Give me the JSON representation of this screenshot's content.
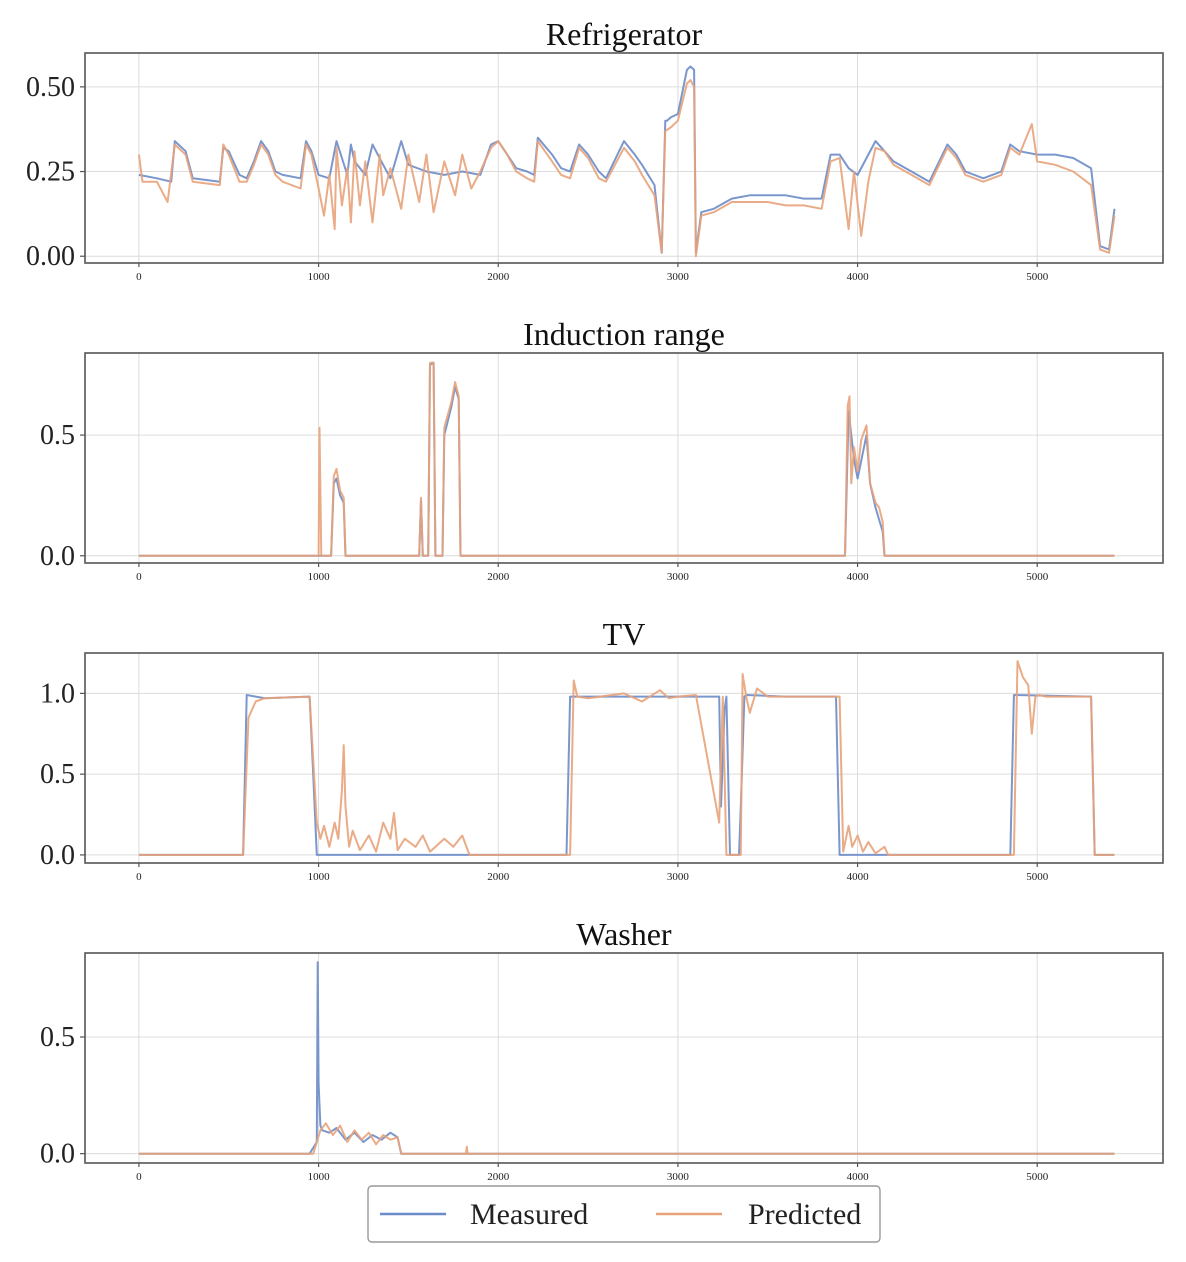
{
  "chart_data": [
    {
      "type": "line",
      "title": "Refrigerator",
      "xlim": [
        -300,
        5700
      ],
      "ylim": [
        -0.02,
        0.6
      ],
      "xticks": [
        0,
        1000,
        2000,
        3000,
        4000,
        5000
      ],
      "yticks": [
        0.0,
        0.25,
        0.5
      ],
      "ytick_labels": [
        "0.00",
        "0.25",
        "0.50"
      ],
      "grid": true,
      "series": [
        {
          "name": "Measured",
          "color": "#6b8cc8",
          "x": [
            0,
            100,
            180,
            200,
            260,
            300,
            450,
            470,
            500,
            560,
            600,
            640,
            680,
            720,
            760,
            800,
            900,
            930,
            960,
            1000,
            1060,
            1100,
            1130,
            1160,
            1180,
            1200,
            1260,
            1300,
            1360,
            1400,
            1460,
            1500,
            1600,
            1700,
            1800,
            1900,
            1960,
            2000,
            2050,
            2100,
            2160,
            2200,
            2220,
            2300,
            2350,
            2400,
            2450,
            2500,
            2560,
            2600,
            2700,
            2760,
            2800,
            2870,
            2910,
            2930,
            2940,
            2960,
            3000,
            3050,
            3070,
            3090,
            3100,
            3130,
            3200,
            3300,
            3400,
            3500,
            3600,
            3700,
            3800,
            3850,
            3900,
            3950,
            4000,
            4100,
            4150,
            4200,
            4300,
            4400,
            4500,
            4550,
            4600,
            4700,
            4750,
            4800,
            4850,
            4900,
            5000,
            5100,
            5200,
            5300,
            5350,
            5400,
            5430
          ],
          "values": [
            0.24,
            0.23,
            0.22,
            0.34,
            0.31,
            0.23,
            0.22,
            0.32,
            0.31,
            0.24,
            0.23,
            0.28,
            0.34,
            0.31,
            0.25,
            0.24,
            0.23,
            0.34,
            0.31,
            0.24,
            0.23,
            0.34,
            0.29,
            0.24,
            0.33,
            0.28,
            0.24,
            0.33,
            0.27,
            0.23,
            0.34,
            0.27,
            0.25,
            0.24,
            0.25,
            0.24,
            0.33,
            0.34,
            0.3,
            0.26,
            0.25,
            0.24,
            0.35,
            0.3,
            0.26,
            0.25,
            0.33,
            0.3,
            0.25,
            0.23,
            0.34,
            0.3,
            0.27,
            0.21,
            0.01,
            0.4,
            0.4,
            0.41,
            0.42,
            0.55,
            0.56,
            0.55,
            0.01,
            0.13,
            0.14,
            0.17,
            0.18,
            0.18,
            0.18,
            0.17,
            0.17,
            0.3,
            0.3,
            0.26,
            0.24,
            0.34,
            0.31,
            0.28,
            0.25,
            0.22,
            0.33,
            0.3,
            0.25,
            0.23,
            0.24,
            0.25,
            0.33,
            0.31,
            0.3,
            0.3,
            0.29,
            0.26,
            0.03,
            0.02,
            0.14
          ]
        },
        {
          "name": "Predicted",
          "color": "#e8a27a",
          "x": [
            0,
            20,
            100,
            160,
            200,
            260,
            300,
            450,
            470,
            500,
            560,
            600,
            640,
            680,
            720,
            760,
            800,
            900,
            930,
            960,
            1000,
            1030,
            1060,
            1090,
            1100,
            1130,
            1160,
            1180,
            1200,
            1230,
            1260,
            1300,
            1340,
            1360,
            1400,
            1460,
            1500,
            1560,
            1600,
            1640,
            1700,
            1760,
            1800,
            1850,
            1900,
            1960,
            2000,
            2050,
            2100,
            2160,
            2200,
            2220,
            2300,
            2350,
            2400,
            2450,
            2500,
            2560,
            2600,
            2700,
            2760,
            2800,
            2870,
            2910,
            2930,
            2960,
            3000,
            3050,
            3070,
            3090,
            3100,
            3130,
            3200,
            3300,
            3400,
            3500,
            3600,
            3700,
            3800,
            3850,
            3900,
            3950,
            3980,
            4020,
            4060,
            4100,
            4150,
            4200,
            4300,
            4400,
            4500,
            4550,
            4600,
            4700,
            4750,
            4800,
            4850,
            4900,
            4970,
            5000,
            5100,
            5200,
            5300,
            5350,
            5400,
            5430
          ],
          "values": [
            0.3,
            0.22,
            0.22,
            0.16,
            0.33,
            0.3,
            0.22,
            0.21,
            0.33,
            0.3,
            0.22,
            0.22,
            0.27,
            0.33,
            0.3,
            0.24,
            0.22,
            0.2,
            0.33,
            0.3,
            0.2,
            0.12,
            0.24,
            0.08,
            0.32,
            0.15,
            0.26,
            0.1,
            0.31,
            0.15,
            0.28,
            0.1,
            0.3,
            0.18,
            0.26,
            0.14,
            0.3,
            0.16,
            0.3,
            0.13,
            0.28,
            0.18,
            0.3,
            0.2,
            0.25,
            0.32,
            0.34,
            0.3,
            0.25,
            0.23,
            0.22,
            0.34,
            0.28,
            0.24,
            0.23,
            0.32,
            0.29,
            0.23,
            0.22,
            0.32,
            0.28,
            0.24,
            0.18,
            0.01,
            0.37,
            0.38,
            0.4,
            0.51,
            0.52,
            0.5,
            0.0,
            0.12,
            0.13,
            0.16,
            0.16,
            0.16,
            0.15,
            0.15,
            0.14,
            0.28,
            0.29,
            0.08,
            0.25,
            0.06,
            0.22,
            0.32,
            0.31,
            0.27,
            0.24,
            0.21,
            0.32,
            0.29,
            0.24,
            0.22,
            0.23,
            0.24,
            0.32,
            0.3,
            0.39,
            0.28,
            0.27,
            0.25,
            0.21,
            0.02,
            0.01,
            0.12
          ]
        }
      ]
    },
    {
      "type": "line",
      "title": "Induction range",
      "xlim": [
        -300,
        5700
      ],
      "ylim": [
        -0.03,
        0.84
      ],
      "xticks": [
        0,
        1000,
        2000,
        3000,
        4000,
        5000
      ],
      "yticks": [
        0.0,
        0.5
      ],
      "ytick_labels": [
        "0.0",
        "0.5"
      ],
      "grid": true,
      "series": [
        {
          "name": "Measured",
          "color": "#6b8cc8",
          "x": [
            0,
            1070,
            1085,
            1100,
            1120,
            1140,
            1150,
            1560,
            1570,
            1580,
            1590,
            1610,
            1620,
            1640,
            1650,
            1660,
            1690,
            1700,
            1740,
            1760,
            1780,
            1790,
            3930,
            3950,
            3980,
            4000,
            4050,
            4070,
            4100,
            4120,
            4140,
            4150,
            5430
          ],
          "values": [
            0,
            0,
            0.3,
            0.32,
            0.25,
            0.22,
            0,
            0,
            0.23,
            0,
            0,
            0,
            0.79,
            0.8,
            0,
            0,
            0,
            0.5,
            0.62,
            0.7,
            0.65,
            0,
            0,
            0.6,
            0.4,
            0.32,
            0.5,
            0.3,
            0.2,
            0.15,
            0.1,
            0,
            0
          ]
        },
        {
          "name": "Predicted",
          "color": "#e8a27a",
          "x": [
            0,
            1000,
            1005,
            1015,
            1070,
            1085,
            1100,
            1120,
            1140,
            1150,
            1560,
            1570,
            1580,
            1590,
            1610,
            1620,
            1640,
            1650,
            1660,
            1690,
            1700,
            1740,
            1760,
            1780,
            1790,
            3930,
            3945,
            3955,
            3965,
            3980,
            4000,
            4020,
            4050,
            4070,
            4100,
            4120,
            4140,
            4150,
            5430
          ],
          "values": [
            0,
            0,
            0.53,
            0,
            0,
            0.33,
            0.36,
            0.27,
            0.24,
            0,
            0,
            0.24,
            0,
            0,
            0,
            0.8,
            0.8,
            0,
            0,
            0,
            0.53,
            0.64,
            0.72,
            0.66,
            0,
            0,
            0.62,
            0.66,
            0.3,
            0.45,
            0.35,
            0.48,
            0.54,
            0.3,
            0.22,
            0.2,
            0.14,
            0,
            0
          ]
        }
      ]
    },
    {
      "type": "line",
      "title": "TV",
      "xlim": [
        -300,
        5700
      ],
      "ylim": [
        -0.05,
        1.25
      ],
      "xticks": [
        0,
        1000,
        2000,
        3000,
        4000,
        5000
      ],
      "yticks": [
        0.0,
        0.5,
        1.0
      ],
      "ytick_labels": [
        "0.0",
        "0.5",
        "1.0"
      ],
      "grid": true,
      "series": [
        {
          "name": "Measured",
          "color": "#6b8cc8",
          "x": [
            0,
            580,
            600,
            650,
            700,
            950,
            970,
            990,
            2380,
            2400,
            2500,
            3200,
            3230,
            3240,
            3260,
            3270,
            3290,
            3340,
            3350,
            3370,
            3380,
            3600,
            3880,
            3900,
            4850,
            4870,
            5300,
            5320,
            5430
          ],
          "values": [
            0,
            0,
            0.99,
            0.98,
            0.97,
            0.98,
            0.5,
            0,
            0,
            0.98,
            0.98,
            0.98,
            0.98,
            0.3,
            0.9,
            0.98,
            0,
            0,
            0.3,
            0.98,
            0.99,
            0.98,
            0.98,
            0,
            0,
            0.99,
            0.98,
            0,
            0
          ]
        },
        {
          "name": "Predicted",
          "color": "#e8a27a",
          "x": [
            0,
            580,
            610,
            650,
            700,
            950,
            990,
            1010,
            1030,
            1060,
            1090,
            1110,
            1130,
            1140,
            1150,
            1170,
            1190,
            1230,
            1280,
            1320,
            1360,
            1400,
            1420,
            1440,
            1480,
            1540,
            1580,
            1620,
            1700,
            1750,
            1800,
            1830,
            1840,
            2400,
            2420,
            2440,
            2500,
            2700,
            2800,
            2900,
            2950,
            3000,
            3100,
            3230,
            3240,
            3250,
            3270,
            3290,
            3350,
            3360,
            3380,
            3400,
            3440,
            3500,
            3600,
            3700,
            3900,
            3920,
            3950,
            3970,
            4000,
            4030,
            4060,
            4100,
            4150,
            4170,
            4870,
            4890,
            4920,
            4950,
            4970,
            4990,
            5010,
            5050,
            5300,
            5320,
            5430
          ],
          "values": [
            0,
            0,
            0.85,
            0.95,
            0.97,
            0.98,
            0.2,
            0.1,
            0.18,
            0.05,
            0.2,
            0.1,
            0.4,
            0.68,
            0.3,
            0.05,
            0.15,
            0.03,
            0.12,
            0.02,
            0.2,
            0.1,
            0.26,
            0.03,
            0.1,
            0.05,
            0.12,
            0.02,
            0.1,
            0.05,
            0.12,
            0.03,
            0,
            0,
            1.08,
            0.98,
            0.97,
            1.0,
            0.95,
            1.02,
            0.97,
            0.98,
            0.99,
            0.2,
            0.6,
            0.98,
            0,
            0,
            0,
            1.12,
            0.98,
            0.88,
            1.03,
            0.98,
            0.98,
            0.98,
            0.98,
            0.02,
            0.18,
            0.05,
            0.12,
            0.02,
            0.08,
            0.01,
            0.05,
            0,
            0,
            1.2,
            1.1,
            1.05,
            0.75,
            0.98,
            0.99,
            0.98,
            0.98,
            0,
            0
          ]
        }
      ]
    },
    {
      "type": "line",
      "title": "Washer",
      "xlim": [
        -300,
        5700
      ],
      "ylim": [
        -0.04,
        0.86
      ],
      "xticks": [
        0,
        1000,
        2000,
        3000,
        4000,
        5000
      ],
      "yticks": [
        0.0,
        0.5
      ],
      "ytick_labels": [
        "0.0",
        "0.5"
      ],
      "grid": true,
      "series": [
        {
          "name": "Measured",
          "color": "#6b8cc8",
          "x": [
            0,
            950,
            990,
            995,
            1000,
            1010,
            1020,
            1060,
            1100,
            1150,
            1200,
            1250,
            1300,
            1350,
            1400,
            1440,
            1460,
            5430
          ],
          "values": [
            0,
            0,
            0.05,
            0.82,
            0.3,
            0.12,
            0.1,
            0.09,
            0.11,
            0.06,
            0.09,
            0.05,
            0.08,
            0.06,
            0.09,
            0.07,
            0,
            0
          ]
        },
        {
          "name": "Predicted",
          "color": "#e8a27a",
          "x": [
            0,
            970,
            1010,
            1040,
            1080,
            1120,
            1160,
            1200,
            1240,
            1280,
            1320,
            1360,
            1400,
            1440,
            1460,
            1820,
            1825,
            1830,
            5430
          ],
          "values": [
            0,
            0,
            0.1,
            0.13,
            0.08,
            0.12,
            0.05,
            0.1,
            0.06,
            0.09,
            0.04,
            0.08,
            0.06,
            0.07,
            0,
            0,
            0.03,
            0,
            0
          ]
        }
      ]
    }
  ],
  "legend": {
    "items": [
      {
        "label": "Measured",
        "color": "#6b8cc8"
      },
      {
        "label": "Predicted",
        "color": "#e8a27a"
      }
    ]
  }
}
